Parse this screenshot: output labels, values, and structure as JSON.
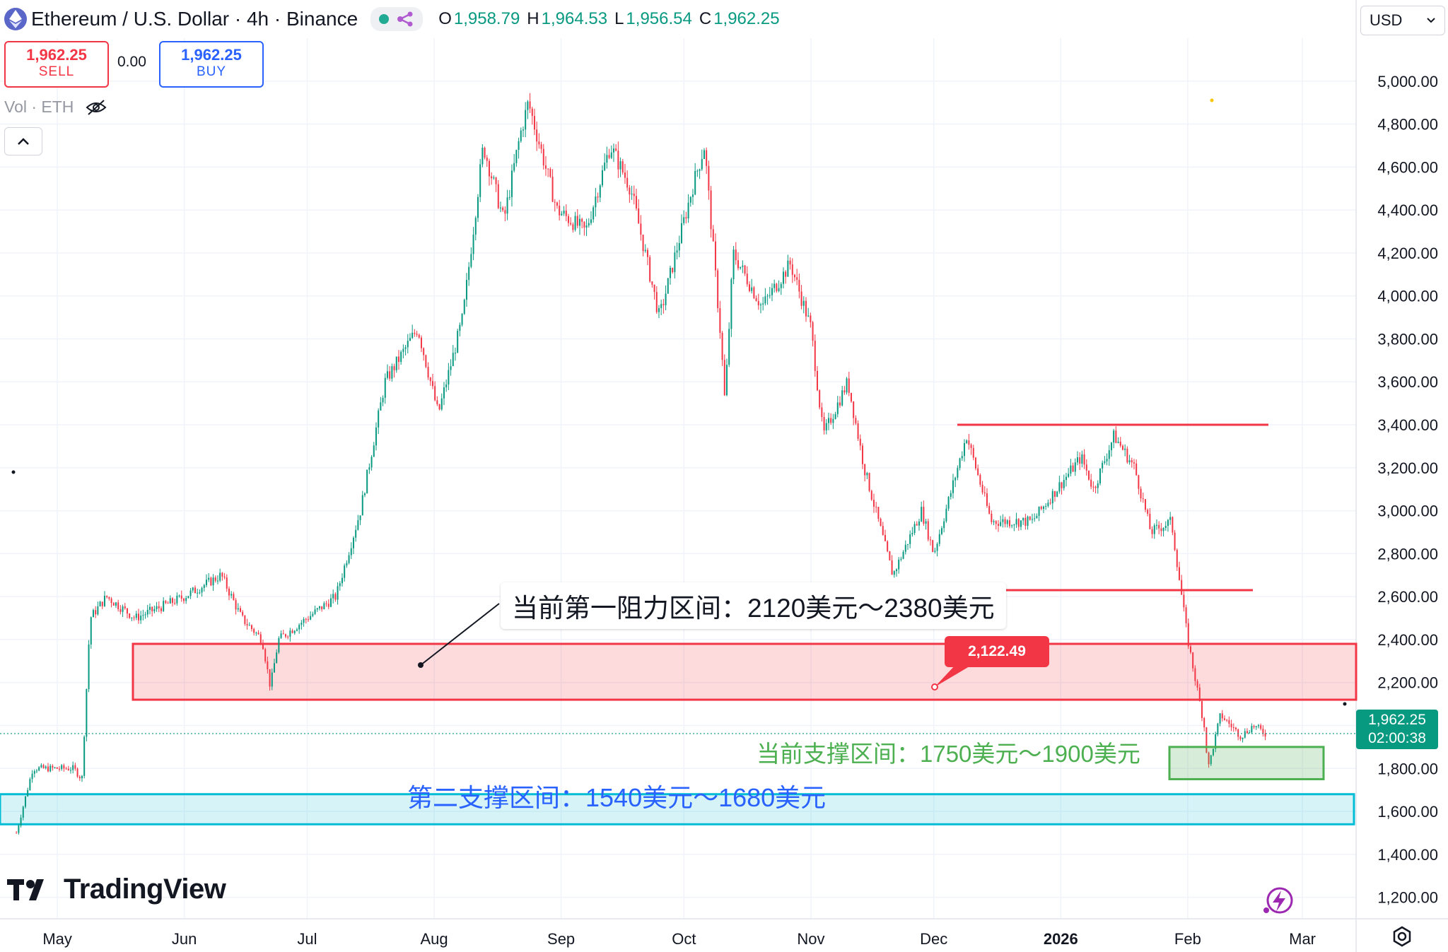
{
  "header": {
    "symbol_title": "Ethereum / U.S. Dollar · 4h · Binance",
    "ohlc": [
      {
        "k": "O",
        "v": "1,958.79"
      },
      {
        "k": "H",
        "v": "1,964.53"
      },
      {
        "k": "L",
        "v": "1,956.54"
      },
      {
        "k": "C",
        "v": "1,962.25"
      }
    ]
  },
  "trade": {
    "sell_price": "1,962.25",
    "sell_label": "SELL",
    "spread": "0.00",
    "buy_price": "1,962.25",
    "buy_label": "BUY"
  },
  "volume_label": "Vol · ETH",
  "currency_selector": "USD",
  "brand": "TradingView",
  "chart_data": {
    "type": "candlestick",
    "price_axis_ticks": [
      "5,000.00",
      "4,800.00",
      "4,600.00",
      "4,400.00",
      "4,200.00",
      "4,000.00",
      "3,800.00",
      "3,600.00",
      "3,400.00",
      "3,200.00",
      "3,000.00",
      "2,800.00",
      "2,600.00",
      "2,400.00",
      "2,200.00",
      "2,000.00",
      "1,800.00",
      "1,600.00",
      "1,400.00",
      "1,200.00"
    ],
    "time_axis_ticks": [
      "May",
      "Jun",
      "Jul",
      "Aug",
      "Sep",
      "Oct",
      "Nov",
      "Dec",
      "2026",
      "Feb",
      "Mar"
    ],
    "ylim": [
      1100,
      5200
    ],
    "last_price": "1,962.25",
    "countdown": "02:00:38",
    "colors": {
      "up": "#089981",
      "down": "#f23645",
      "resistance": "#f23645",
      "support": "#4caf50",
      "second_support": "#00bcd4"
    },
    "path_anchors": [
      [
        "2025-04-21",
        1500
      ],
      [
        "2025-04-25",
        1800
      ],
      [
        "2025-05-05",
        1800
      ],
      [
        "2025-05-07",
        1750
      ],
      [
        "2025-05-09",
        2500
      ],
      [
        "2025-05-13",
        2600
      ],
      [
        "2025-05-20",
        2500
      ],
      [
        "2025-06-01",
        2600
      ],
      [
        "2025-06-10",
        2700
      ],
      [
        "2025-06-15",
        2500
      ],
      [
        "2025-06-20",
        2400
      ],
      [
        "2025-06-22",
        2180
      ],
      [
        "2025-06-24",
        2400
      ],
      [
        "2025-07-08",
        2600
      ],
      [
        "2025-07-14",
        3000
      ],
      [
        "2025-07-20",
        3600
      ],
      [
        "2025-07-28",
        3850
      ],
      [
        "2025-08-02",
        3450
      ],
      [
        "2025-08-08",
        3900
      ],
      [
        "2025-08-13",
        4700
      ],
      [
        "2025-08-18",
        4350
      ],
      [
        "2025-08-22",
        4750
      ],
      [
        "2025-08-24",
        4900
      ],
      [
        "2025-08-31",
        4400
      ],
      [
        "2025-09-07",
        4300
      ],
      [
        "2025-09-13",
        4700
      ],
      [
        "2025-09-18",
        4500
      ],
      [
        "2025-09-25",
        3900
      ],
      [
        "2025-10-03",
        4500
      ],
      [
        "2025-10-06",
        4700
      ],
      [
        "2025-10-10",
        3800
      ],
      [
        "2025-10-11",
        3500
      ],
      [
        "2025-10-13",
        4200
      ],
      [
        "2025-10-20",
        3950
      ],
      [
        "2025-10-27",
        4150
      ],
      [
        "2025-11-01",
        3850
      ],
      [
        "2025-11-04",
        3350
      ],
      [
        "2025-11-10",
        3600
      ],
      [
        "2025-11-14",
        3200
      ],
      [
        "2025-11-21",
        2700
      ],
      [
        "2025-11-28",
        3000
      ],
      [
        "2025-12-01",
        2800
      ],
      [
        "2025-12-09",
        3350
      ],
      [
        "2025-12-15",
        2950
      ],
      [
        "2025-12-25",
        2950
      ],
      [
        "2026-01-06",
        3250
      ],
      [
        "2026-01-09",
        3100
      ],
      [
        "2026-01-14",
        3350
      ],
      [
        "2026-01-19",
        3200
      ],
      [
        "2026-01-23",
        2900
      ],
      [
        "2026-01-28",
        2950
      ],
      [
        "2026-02-01",
        2400
      ],
      [
        "2026-02-05",
        2000
      ],
      [
        "2026-02-06",
        1800
      ],
      [
        "2026-02-09",
        2050
      ],
      [
        "2026-02-14",
        1950
      ],
      [
        "2026-02-17",
        2000
      ],
      [
        "2026-02-20",
        1962
      ]
    ],
    "annotations": {
      "resistance_zone": {
        "low": 2120,
        "high": 2380,
        "label": "当前第一阻力区间：2120美元～2380美元"
      },
      "price_callout": "2,122.49",
      "support_zone": {
        "low": 1750,
        "high": 1900,
        "label": "当前支撑区间：1750美元～1900美元"
      },
      "second_support_zone": {
        "low": 1540,
        "high": 1680,
        "label": "第二支撑区间：1540美元～1680美元"
      },
      "upper_resistance_line": 3400,
      "lower_line": 2630
    }
  }
}
